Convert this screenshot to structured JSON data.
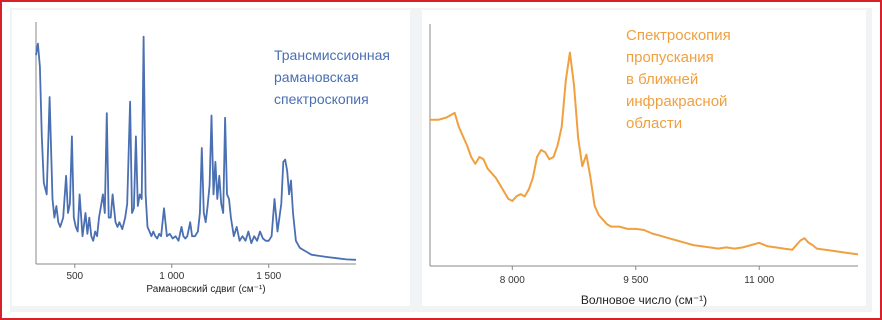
{
  "colors": {
    "frame": "#d8202a",
    "raman_line": "#4a6fb3",
    "nir_line": "#f0a040",
    "axis": "#888888"
  },
  "chart_data": [
    {
      "id": "raman",
      "type": "line",
      "title": "",
      "annotation": [
        "Трансмиссионная",
        "рамановская",
        "спектроскопия"
      ],
      "xlabel": "Рамановский сдвиг (см⁻¹)",
      "ylabel": "",
      "xlim": [
        300,
        1950
      ],
      "ylim": [
        0,
        1
      ],
      "xticks": [
        500,
        1000,
        1500
      ],
      "xtick_labels": [
        "500",
        "1 000",
        "1 500"
      ],
      "grid": false,
      "series": [
        {
          "x": [
            300,
            310,
            320,
            330,
            340,
            355,
            370,
            385,
            395,
            405,
            415,
            425,
            440,
            455,
            465,
            475,
            485,
            495,
            505,
            515,
            525,
            540,
            555,
            565,
            575,
            585,
            595,
            605,
            615,
            625,
            635,
            645,
            655,
            665,
            675,
            685,
            695,
            710,
            720,
            730,
            745,
            760,
            770,
            785,
            795,
            805,
            815,
            825,
            835,
            845,
            855,
            865,
            875,
            885,
            895,
            905,
            915,
            925,
            935,
            945,
            960,
            975,
            990,
            1005,
            1020,
            1035,
            1050,
            1060,
            1070,
            1080,
            1095,
            1105,
            1120,
            1135,
            1145,
            1155,
            1165,
            1175,
            1185,
            1195,
            1205,
            1215,
            1225,
            1235,
            1245,
            1255,
            1265,
            1275,
            1285,
            1295,
            1305,
            1320,
            1335,
            1350,
            1365,
            1380,
            1395,
            1410,
            1425,
            1440,
            1455,
            1470,
            1485,
            1500,
            1515,
            1530,
            1545,
            1555,
            1565,
            1575,
            1585,
            1595,
            1605,
            1615,
            1625,
            1640,
            1660,
            1680,
            1700,
            1720,
            1760,
            1800,
            1850,
            1900,
            1950
          ],
          "y": [
            0.9,
            0.95,
            0.85,
            0.55,
            0.35,
            0.3,
            0.72,
            0.28,
            0.2,
            0.25,
            0.18,
            0.16,
            0.2,
            0.38,
            0.22,
            0.26,
            0.55,
            0.2,
            0.16,
            0.14,
            0.3,
            0.12,
            0.22,
            0.13,
            0.2,
            0.12,
            0.1,
            0.14,
            0.12,
            0.2,
            0.25,
            0.3,
            0.22,
            0.65,
            0.2,
            0.2,
            0.3,
            0.18,
            0.16,
            0.18,
            0.15,
            0.2,
            0.26,
            0.7,
            0.22,
            0.24,
            0.55,
            0.25,
            0.3,
            0.28,
            0.98,
            0.3,
            0.16,
            0.14,
            0.12,
            0.14,
            0.12,
            0.11,
            0.13,
            0.12,
            0.24,
            0.12,
            0.13,
            0.11,
            0.12,
            0.1,
            0.16,
            0.12,
            0.11,
            0.12,
            0.18,
            0.12,
            0.12,
            0.14,
            0.22,
            0.5,
            0.22,
            0.18,
            0.25,
            0.34,
            0.64,
            0.3,
            0.44,
            0.28,
            0.38,
            0.26,
            0.22,
            0.63,
            0.3,
            0.28,
            0.2,
            0.12,
            0.16,
            0.1,
            0.12,
            0.1,
            0.14,
            0.09,
            0.12,
            0.1,
            0.14,
            0.11,
            0.1,
            0.1,
            0.12,
            0.28,
            0.14,
            0.2,
            0.26,
            0.44,
            0.45,
            0.4,
            0.3,
            0.36,
            0.22,
            0.1,
            0.07,
            0.06,
            0.05,
            0.04,
            0.035,
            0.03,
            0.025,
            0.02,
            0.018
          ]
        }
      ]
    },
    {
      "id": "nir",
      "type": "line",
      "title": "",
      "annotation": [
        "Спектроскопия",
        "пропускания",
        "в ближней",
        "инфракрасной",
        "области"
      ],
      "xlabel": "Волновое число (см⁻¹)",
      "ylabel": "",
      "xlim": [
        7000,
        12200
      ],
      "ylim": [
        0,
        1
      ],
      "xticks": [
        8000,
        9500,
        11000
      ],
      "xtick_labels": [
        "8 000",
        "9 500",
        "11 000"
      ],
      "grid": false,
      "series": [
        {
          "x": [
            7000,
            7100,
            7200,
            7300,
            7350,
            7400,
            7450,
            7500,
            7550,
            7600,
            7650,
            7700,
            7750,
            7800,
            7850,
            7900,
            7950,
            8000,
            8050,
            8100,
            8150,
            8200,
            8250,
            8300,
            8350,
            8400,
            8450,
            8500,
            8550,
            8600,
            8650,
            8700,
            8750,
            8800,
            8850,
            8900,
            8950,
            9000,
            9050,
            9100,
            9150,
            9200,
            9300,
            9400,
            9500,
            9600,
            9700,
            9800,
            9900,
            10000,
            10100,
            10200,
            10300,
            10400,
            10500,
            10600,
            10700,
            10800,
            10900,
            11000,
            11100,
            11200,
            11300,
            11400,
            11500,
            11550,
            11600,
            11650,
            11700,
            11800,
            11900,
            12000,
            12100,
            12200
          ],
          "y": [
            0.63,
            0.63,
            0.64,
            0.66,
            0.6,
            0.56,
            0.52,
            0.47,
            0.44,
            0.47,
            0.46,
            0.42,
            0.4,
            0.38,
            0.35,
            0.32,
            0.29,
            0.28,
            0.3,
            0.31,
            0.3,
            0.33,
            0.38,
            0.47,
            0.5,
            0.49,
            0.46,
            0.47,
            0.52,
            0.6,
            0.8,
            0.92,
            0.78,
            0.55,
            0.43,
            0.48,
            0.38,
            0.26,
            0.22,
            0.2,
            0.18,
            0.17,
            0.17,
            0.16,
            0.16,
            0.155,
            0.14,
            0.13,
            0.12,
            0.11,
            0.1,
            0.09,
            0.085,
            0.08,
            0.075,
            0.08,
            0.075,
            0.08,
            0.09,
            0.1,
            0.085,
            0.08,
            0.075,
            0.07,
            0.11,
            0.12,
            0.1,
            0.09,
            0.075,
            0.07,
            0.065,
            0.06,
            0.055,
            0.05
          ]
        }
      ]
    }
  ]
}
